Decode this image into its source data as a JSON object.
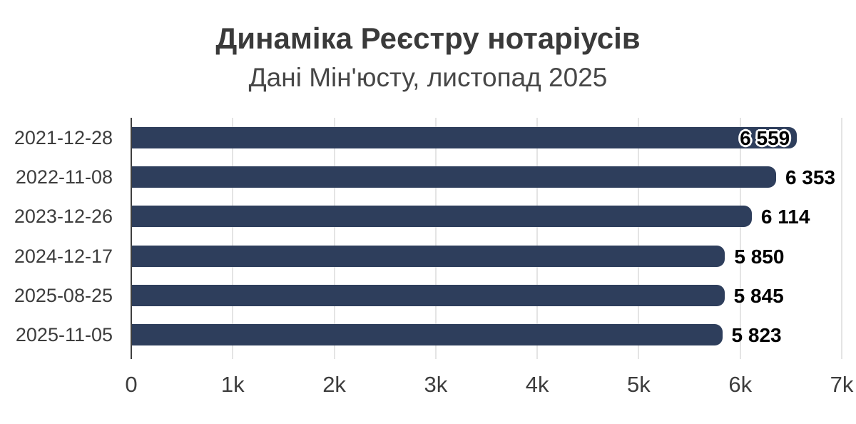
{
  "colors": {
    "background": "#ffffff",
    "bar": "#2e3e5c",
    "grid": "#e4e4e4",
    "axis": "#3f3f3f",
    "title": "#3a3a3a",
    "subtitle": "#474747",
    "category_label": "#3d3d3d",
    "tick_label": "#3d3d3d",
    "value_label": "#000000",
    "value_label_halo": "#ffffff"
  },
  "chart_data": {
    "type": "bar",
    "orientation": "horizontal",
    "title": "Динаміка Реєстру нотаріусів",
    "subtitle": "Дані Мін'юсту, листопад 2025",
    "xlabel": "",
    "ylabel": "",
    "categories": [
      "2021-12-28",
      "2022-11-08",
      "2023-12-26",
      "2024-12-17",
      "2025-08-25",
      "2025-11-05"
    ],
    "values": [
      6559,
      6353,
      6114,
      5850,
      5845,
      5823
    ],
    "value_labels": [
      "6 559",
      "6 353",
      "6 114",
      "5 850",
      "5 845",
      "5 823"
    ],
    "xlim": [
      0,
      7000
    ],
    "x_ticks": [
      0,
      1000,
      2000,
      3000,
      4000,
      5000,
      6000,
      7000
    ],
    "x_tick_labels": [
      "0",
      "1k",
      "2k",
      "3k",
      "4k",
      "5k",
      "6k",
      "7k"
    ],
    "grid": true,
    "legend": false,
    "first_value_label_inside_bar": true
  }
}
